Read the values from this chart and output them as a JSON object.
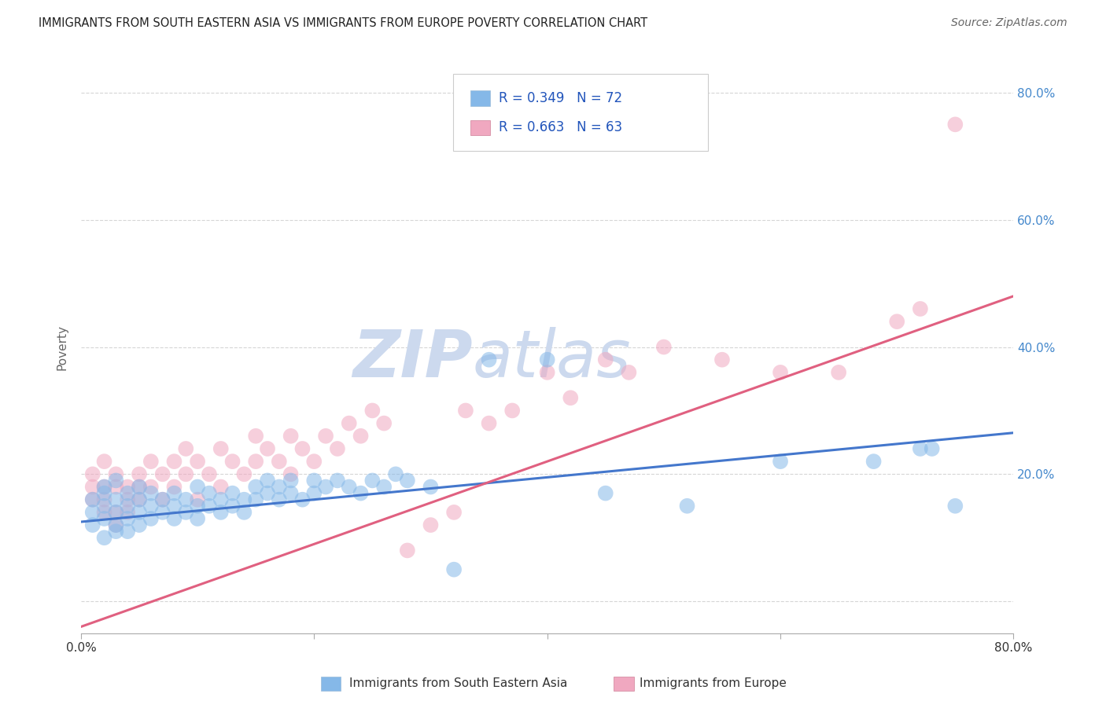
{
  "title": "IMMIGRANTS FROM SOUTH EASTERN ASIA VS IMMIGRANTS FROM EUROPE POVERTY CORRELATION CHART",
  "source": "Source: ZipAtlas.com",
  "ylabel": "Poverty",
  "xlim": [
    0.0,
    0.8
  ],
  "ylim": [
    -0.05,
    0.85
  ],
  "ytick_values": [
    0.0,
    0.2,
    0.4,
    0.6,
    0.8
  ],
  "ytick_labels": [
    "",
    "20.0%",
    "40.0%",
    "60.0%",
    "80.0%"
  ],
  "background_color": "#ffffff",
  "grid_color": "#cccccc",
  "watermark_color": "#ccd9ee",
  "blue_color": "#85b8e8",
  "pink_color": "#f0a8c0",
  "blue_line_color": "#4477cc",
  "pink_line_color": "#e06080",
  "legend_R1": "0.349",
  "legend_N1": "72",
  "legend_R2": "0.663",
  "legend_N2": "63",
  "legend_label1": "Immigrants from South Eastern Asia",
  "legend_label2": "Immigrants from Europe",
  "blue_line_x": [
    0.0,
    0.8
  ],
  "blue_line_y": [
    0.125,
    0.265
  ],
  "pink_line_x": [
    0.0,
    0.8
  ],
  "pink_line_y": [
    -0.04,
    0.48
  ],
  "blue_scatter_x": [
    0.01,
    0.01,
    0.01,
    0.02,
    0.02,
    0.02,
    0.02,
    0.02,
    0.03,
    0.03,
    0.03,
    0.03,
    0.03,
    0.04,
    0.04,
    0.04,
    0.04,
    0.05,
    0.05,
    0.05,
    0.05,
    0.06,
    0.06,
    0.06,
    0.07,
    0.07,
    0.08,
    0.08,
    0.08,
    0.09,
    0.09,
    0.1,
    0.1,
    0.1,
    0.11,
    0.11,
    0.12,
    0.12,
    0.13,
    0.13,
    0.14,
    0.14,
    0.15,
    0.15,
    0.16,
    0.16,
    0.17,
    0.17,
    0.18,
    0.18,
    0.19,
    0.2,
    0.2,
    0.21,
    0.22,
    0.23,
    0.24,
    0.25,
    0.26,
    0.27,
    0.28,
    0.3,
    0.32,
    0.35,
    0.4,
    0.45,
    0.52,
    0.6,
    0.68,
    0.72,
    0.73,
    0.75
  ],
  "blue_scatter_y": [
    0.16,
    0.14,
    0.12,
    0.18,
    0.15,
    0.13,
    0.1,
    0.17,
    0.16,
    0.14,
    0.12,
    0.19,
    0.11,
    0.15,
    0.17,
    0.13,
    0.11,
    0.16,
    0.14,
    0.18,
    0.12,
    0.15,
    0.13,
    0.17,
    0.16,
    0.14,
    0.17,
    0.13,
    0.15,
    0.16,
    0.14,
    0.18,
    0.15,
    0.13,
    0.17,
    0.15,
    0.16,
    0.14,
    0.17,
    0.15,
    0.16,
    0.14,
    0.18,
    0.16,
    0.19,
    0.17,
    0.18,
    0.16,
    0.19,
    0.17,
    0.16,
    0.17,
    0.19,
    0.18,
    0.19,
    0.18,
    0.17,
    0.19,
    0.18,
    0.2,
    0.19,
    0.18,
    0.05,
    0.38,
    0.38,
    0.17,
    0.15,
    0.22,
    0.22,
    0.24,
    0.24,
    0.15
  ],
  "pink_scatter_x": [
    0.01,
    0.01,
    0.01,
    0.02,
    0.02,
    0.02,
    0.02,
    0.03,
    0.03,
    0.03,
    0.03,
    0.04,
    0.04,
    0.04,
    0.05,
    0.05,
    0.05,
    0.06,
    0.06,
    0.07,
    0.07,
    0.08,
    0.08,
    0.09,
    0.09,
    0.1,
    0.1,
    0.11,
    0.12,
    0.12,
    0.13,
    0.14,
    0.15,
    0.15,
    0.16,
    0.17,
    0.18,
    0.18,
    0.19,
    0.2,
    0.21,
    0.22,
    0.23,
    0.24,
    0.25,
    0.26,
    0.28,
    0.3,
    0.32,
    0.33,
    0.35,
    0.37,
    0.4,
    0.42,
    0.45,
    0.47,
    0.5,
    0.55,
    0.6,
    0.65,
    0.7,
    0.72,
    0.75
  ],
  "pink_scatter_y": [
    0.18,
    0.2,
    0.16,
    0.22,
    0.14,
    0.18,
    0.16,
    0.2,
    0.14,
    0.18,
    0.12,
    0.16,
    0.18,
    0.14,
    0.2,
    0.16,
    0.18,
    0.22,
    0.18,
    0.2,
    0.16,
    0.22,
    0.18,
    0.24,
    0.2,
    0.22,
    0.16,
    0.2,
    0.24,
    0.18,
    0.22,
    0.2,
    0.26,
    0.22,
    0.24,
    0.22,
    0.26,
    0.2,
    0.24,
    0.22,
    0.26,
    0.24,
    0.28,
    0.26,
    0.3,
    0.28,
    0.08,
    0.12,
    0.14,
    0.3,
    0.28,
    0.3,
    0.36,
    0.32,
    0.38,
    0.36,
    0.4,
    0.38,
    0.36,
    0.36,
    0.44,
    0.46,
    0.75
  ]
}
